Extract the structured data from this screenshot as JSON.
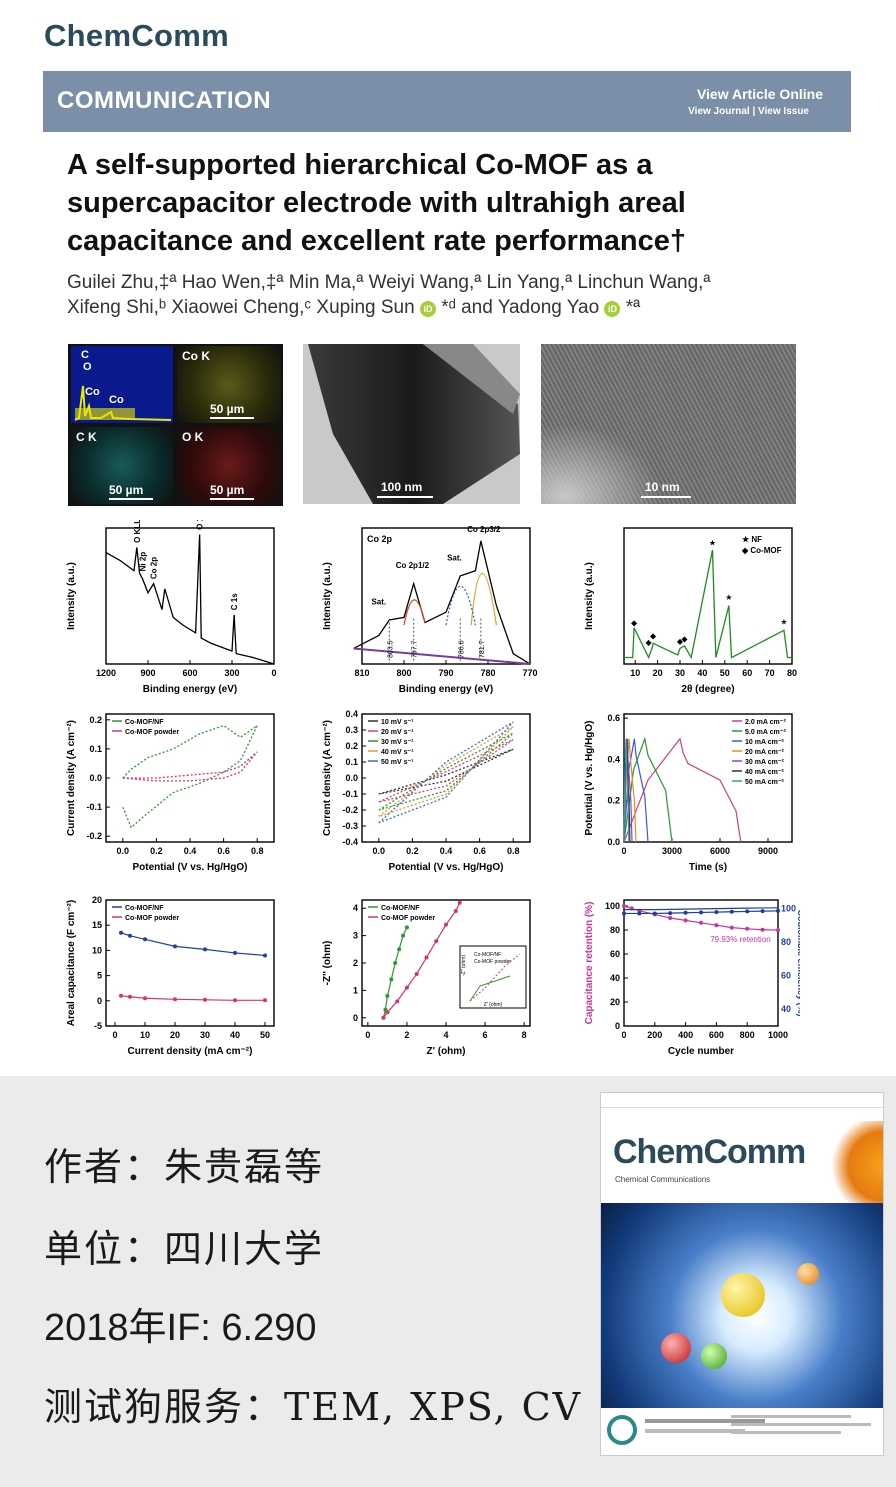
{
  "header": {
    "journal": "ChemComm",
    "category": "COMMUNICATION",
    "view_online": "View Article Online",
    "view_links": "View Journal | View Issue"
  },
  "article": {
    "title_lines": [
      "A self-supported hierarchical Co-MOF as a",
      "supercapacitor electrode with ultrahigh areal",
      "capacitance and excellent rate performance†"
    ],
    "authors_line1": "Guilei Zhu,‡ª Hao Wen,‡ª Min Ma,ª Weiyi Wang,ª Lin Yang,ª Linchun Wang,ª",
    "authors_line2a": "Xifeng Shi,ᵇ Xiaowei Cheng,ᶜ Xuping Sun",
    "authors_line2b": "*ᵈ and Yadong Yao",
    "authors_line2c": "*ª",
    "orcid": "iD"
  },
  "eds": {
    "spectrum_labels": [
      "C",
      "O",
      "Co",
      "Co"
    ],
    "map_labels": [
      "Co K",
      "C K",
      "O K"
    ],
    "scale_bars": [
      "50 µm",
      "50 µm",
      "50 µm"
    ],
    "tem_scale": "100 nm",
    "hrtem_scale": "10 nm"
  },
  "colors": {
    "banner": "#7b8fa8",
    "journal": "#2b4a5a",
    "green": "#1e8c1e",
    "blue": "#1f3f9f",
    "magenta": "#cc3399"
  },
  "chart_data": [
    {
      "type": "line",
      "xlabel": "Binding energy (eV)",
      "ylabel": "Intensity (a.u.)",
      "xticks": [
        "1200",
        "900",
        "600",
        "300",
        "0"
      ],
      "xlim": [
        1200,
        0
      ],
      "annotations": [
        "O KLL",
        "Ni 2p",
        "Co 2p",
        "O 1s",
        "C 1s"
      ],
      "x": [
        1200,
        1100,
        1000,
        980,
        960,
        940,
        900,
        860,
        800,
        780,
        720,
        650,
        560,
        531,
        520,
        450,
        300,
        285,
        270,
        150,
        60,
        0
      ],
      "values": [
        0.86,
        0.8,
        0.72,
        0.9,
        0.7,
        0.66,
        0.55,
        0.62,
        0.42,
        0.58,
        0.36,
        0.3,
        0.24,
        1.0,
        0.2,
        0.16,
        0.1,
        0.38,
        0.08,
        0.05,
        0.02,
        0.0
      ]
    },
    {
      "type": "line",
      "title": "Co 2p",
      "xlabel": "Binding energy (eV)",
      "ylabel": "Intensity (a.u.)",
      "xticks": [
        "810",
        "800",
        "790",
        "780",
        "770"
      ],
      "xlim": [
        810,
        770
      ],
      "annotations": [
        "Sat.",
        "Co 2p1/2",
        "Sat.",
        "Co 2p3/2"
      ],
      "peak_labels": [
        "803.5",
        "797.7",
        "786.6",
        "781.7"
      ],
      "x": [
        812,
        806,
        803.5,
        800,
        797.7,
        795,
        790,
        786.6,
        783,
        781.7,
        778,
        774,
        770
      ],
      "values": [
        0.12,
        0.22,
        0.34,
        0.36,
        0.62,
        0.32,
        0.4,
        0.68,
        0.72,
        0.95,
        0.45,
        0.08,
        0.0
      ]
    },
    {
      "type": "line",
      "xlabel": "2θ (degree)",
      "ylabel": "Intensity (a.u.)",
      "xticks": [
        "10",
        "20",
        "30",
        "40",
        "50",
        "60",
        "70",
        "80"
      ],
      "xlim": [
        5,
        80
      ],
      "legend": [
        "NF",
        "Co-MOF"
      ],
      "x": [
        5,
        8.9,
        9.5,
        16,
        17.5,
        18,
        29,
        30,
        32,
        35,
        44.5,
        46,
        51.8,
        53,
        76.4,
        78,
        80
      ],
      "values": [
        0.05,
        0.05,
        0.28,
        0.05,
        0.12,
        0.16,
        0.07,
        0.12,
        0.14,
        0.05,
        0.88,
        0.05,
        0.45,
        0.05,
        0.26,
        0.05,
        0.05
      ]
    },
    {
      "type": "line",
      "xlabel": "Potential (V vs. Hg/HgO)",
      "ylabel": "Current density (A cm⁻²)",
      "xticks": [
        "0.0",
        "0.2",
        "0.4",
        "0.6",
        "0.8"
      ],
      "yticks": [
        "0.2",
        "0.1",
        "0.0",
        "-0.1",
        "-0.2"
      ],
      "xlim": [
        -0.1,
        0.9
      ],
      "ylim": [
        -0.22,
        0.22
      ],
      "legend": [
        "Co-MOF/NF",
        "Co-MOF powder"
      ],
      "series": [
        {
          "name": "Co-MOF/NF",
          "x": [
            0.0,
            0.05,
            0.15,
            0.3,
            0.45,
            0.6,
            0.7,
            0.8,
            0.7,
            0.6,
            0.45,
            0.3,
            0.15,
            0.05,
            0.0
          ],
          "values": [
            0.0,
            0.03,
            0.07,
            0.1,
            0.15,
            0.18,
            0.14,
            0.18,
            0.06,
            0.02,
            -0.02,
            -0.05,
            -0.12,
            -0.17,
            -0.1
          ]
        },
        {
          "name": "Co-MOF powder",
          "x": [
            0.0,
            0.2,
            0.4,
            0.6,
            0.7,
            0.8,
            0.7,
            0.6,
            0.4,
            0.2,
            0.0
          ],
          "values": [
            0.0,
            0.0,
            0.01,
            0.02,
            0.04,
            0.09,
            0.02,
            0.0,
            -0.01,
            -0.01,
            0.0
          ]
        }
      ]
    },
    {
      "type": "line",
      "xlabel": "Potential (V vs. Hg/HgO)",
      "ylabel": "Current density (A cm⁻²)",
      "xticks": [
        "0.0",
        "0.2",
        "0.4",
        "0.6",
        "0.8"
      ],
      "yticks": [
        "0.4",
        "0.3",
        "0.2",
        "0.1",
        "0.0",
        "-0.1",
        "-0.2",
        "-0.3",
        "-0.4"
      ],
      "xlim": [
        -0.1,
        0.9
      ],
      "ylim": [
        -0.4,
        0.4
      ],
      "legend": [
        "10 mV s⁻¹",
        "20 mV s⁻¹",
        "30 mV s⁻¹",
        "40 mV s⁻¹",
        "50 mV s⁻¹"
      ],
      "series": [
        {
          "name": "10 mV s⁻¹",
          "x": [
            0.0,
            0.4,
            0.8,
            0.4,
            0.0
          ],
          "values": [
            -0.1,
            0.02,
            0.18,
            -0.02,
            -0.1
          ]
        },
        {
          "name": "20 mV s⁻¹",
          "x": [
            0.0,
            0.4,
            0.8,
            0.4,
            0.0
          ],
          "values": [
            -0.15,
            0.04,
            0.24,
            -0.05,
            -0.15
          ]
        },
        {
          "name": "30 mV s⁻¹",
          "x": [
            0.0,
            0.4,
            0.8,
            0.4,
            0.0
          ],
          "values": [
            -0.2,
            0.06,
            0.28,
            -0.08,
            -0.2
          ]
        },
        {
          "name": "40 mV s⁻¹",
          "x": [
            0.0,
            0.4,
            0.8,
            0.4,
            0.0
          ],
          "values": [
            -0.24,
            0.08,
            0.32,
            -0.1,
            -0.24
          ]
        },
        {
          "name": "50 mV s⁻¹",
          "x": [
            0.0,
            0.4,
            0.8,
            0.4,
            0.0
          ],
          "values": [
            -0.28,
            0.1,
            0.35,
            -0.12,
            -0.28
          ]
        }
      ]
    },
    {
      "type": "line",
      "xlabel": "Time (s)",
      "ylabel": "Potential (V vs. Hg/HgO)",
      "xticks": [
        "0",
        "3000",
        "6000",
        "9000"
      ],
      "yticks": [
        "0.6",
        "0.4",
        "0.2",
        "0.0"
      ],
      "xlim": [
        0,
        10500
      ],
      "ylim": [
        0,
        0.62
      ],
      "legend": [
        "2.0 mA cm⁻²",
        "5.0 mA cm⁻²",
        "10 mA cm⁻²",
        "20 mA cm⁻²",
        "30 mA cm⁻²",
        "40 mA cm⁻²",
        "50 mA cm⁻²"
      ],
      "series": [
        {
          "name": "2.0 mA cm⁻²",
          "x": [
            0,
            1500,
            3500,
            3700,
            4000,
            6000,
            7000,
            7300
          ],
          "values": [
            0.0,
            0.3,
            0.5,
            0.43,
            0.38,
            0.3,
            0.15,
            0.0
          ]
        },
        {
          "name": "5.0 mA cm⁻²",
          "x": [
            0,
            600,
            1300,
            1500,
            2600,
            3000
          ],
          "values": [
            0.0,
            0.35,
            0.5,
            0.42,
            0.25,
            0.0
          ]
        },
        {
          "name": "10 mA cm⁻²",
          "x": [
            0,
            300,
            650,
            750,
            1300,
            1500
          ],
          "values": [
            0.0,
            0.35,
            0.5,
            0.42,
            0.22,
            0.0
          ]
        },
        {
          "name": "20 mA cm⁻²",
          "x": [
            0,
            150,
            330,
            380,
            650,
            750
          ],
          "values": [
            0.0,
            0.35,
            0.5,
            0.42,
            0.2,
            0.0
          ]
        },
        {
          "name": "30 mA cm⁻²",
          "x": [
            0,
            100,
            220,
            250,
            430,
            500
          ],
          "values": [
            0.0,
            0.35,
            0.5,
            0.4,
            0.2,
            0.0
          ]
        },
        {
          "name": "40 mA cm⁻²",
          "x": [
            0,
            75,
            165,
            190,
            320,
            370
          ],
          "values": [
            0.0,
            0.35,
            0.5,
            0.4,
            0.18,
            0.0
          ]
        },
        {
          "name": "50 mA cm⁻²",
          "x": [
            0,
            60,
            130,
            150,
            260,
            300
          ],
          "values": [
            0.0,
            0.35,
            0.5,
            0.4,
            0.18,
            0.0
          ]
        }
      ]
    },
    {
      "type": "line",
      "xlabel": "Current density (mA cm⁻²)",
      "ylabel": "Areal capacitance (F cm⁻²)",
      "xticks": [
        "0",
        "10",
        "20",
        "30",
        "40",
        "50"
      ],
      "yticks": [
        "20",
        "15",
        "10",
        "5",
        "0",
        "-5"
      ],
      "xlim": [
        -3,
        53
      ],
      "ylim": [
        -5,
        20
      ],
      "legend": [
        "Co-MOF/NF",
        "Co-MOF powder"
      ],
      "series": [
        {
          "name": "Co-MOF/NF",
          "x": [
            2,
            5,
            10,
            20,
            30,
            40,
            50
          ],
          "values": [
            13.5,
            12.9,
            12.2,
            10.8,
            10.2,
            9.5,
            9.0
          ]
        },
        {
          "name": "Co-MOF powder",
          "x": [
            2,
            5,
            10,
            20,
            30,
            40,
            50
          ],
          "values": [
            1.0,
            0.8,
            0.5,
            0.3,
            0.2,
            0.1,
            0.1
          ]
        }
      ]
    },
    {
      "type": "scatter",
      "xlabel": "Z' (ohm)",
      "ylabel": "-Z'' (ohm)",
      "xticks": [
        "0",
        "2",
        "4",
        "6",
        "8"
      ],
      "yticks": [
        "4",
        "3",
        "2",
        "1",
        "0"
      ],
      "xlim": [
        -0.3,
        8.3
      ],
      "ylim": [
        -0.3,
        4.3
      ],
      "legend": [
        "Co-MOF/NF",
        "Co-MOF powder"
      ],
      "inset_legend": [
        "Co-MOF/NF",
        "Co-MOF powder"
      ],
      "inset_xlabel": "Z' (ohm)",
      "inset_ylabel": "-Z'' (ohm)",
      "series": [
        {
          "name": "Co-MOF/NF",
          "x": [
            0.8,
            0.9,
            1.0,
            1.2,
            1.4,
            1.6,
            1.8,
            2.0
          ],
          "values": [
            0.0,
            0.3,
            0.8,
            1.4,
            2.0,
            2.5,
            3.0,
            3.3
          ]
        },
        {
          "name": "Co-MOF powder",
          "x": [
            0.8,
            1.0,
            1.5,
            2.0,
            2.5,
            3.0,
            3.5,
            4.0,
            4.5,
            4.7
          ],
          "values": [
            0.0,
            0.2,
            0.6,
            1.1,
            1.6,
            2.2,
            2.8,
            3.4,
            3.9,
            4.2
          ]
        }
      ]
    },
    {
      "type": "line",
      "xlabel": "Cycle number",
      "ylabel": "Capacitance retention (%)",
      "ylabel2": "Coulombic efficiency (%)",
      "xticks": [
        "0",
        "200",
        "400",
        "600",
        "800",
        "1000"
      ],
      "yticks": [
        "100",
        "80",
        "60",
        "40",
        "20",
        "0"
      ],
      "yticks2": [
        "100",
        "80",
        "60",
        "40"
      ],
      "xlim": [
        0,
        1000
      ],
      "ylim": [
        0,
        105
      ],
      "annotation": "79.93% retention",
      "series": [
        {
          "name": "Capacitance retention",
          "x": [
            0,
            50,
            100,
            200,
            300,
            400,
            500,
            600,
            700,
            800,
            900,
            1000
          ],
          "values": [
            100,
            98,
            96,
            93,
            90,
            88,
            86,
            84,
            82,
            81,
            80.2,
            79.93
          ]
        },
        {
          "name": "Coulombic efficiency",
          "x": [
            0,
            100,
            200,
            300,
            400,
            500,
            600,
            700,
            800,
            900,
            1000
          ],
          "values": [
            97,
            97,
            97,
            97.2,
            97.4,
            97.6,
            97.8,
            98,
            98.2,
            98.4,
            98.5
          ]
        }
      ]
    }
  ],
  "info": {
    "author_line": "作者：朱贵磊等",
    "unit_line": "单位：四川大学",
    "if_line": "2018年IF: 6.290",
    "service_line": "测试狗服务：TEM, XPS, CV"
  },
  "cover": {
    "journal": "ChemComm",
    "subtitle": "Chemical Communications"
  }
}
